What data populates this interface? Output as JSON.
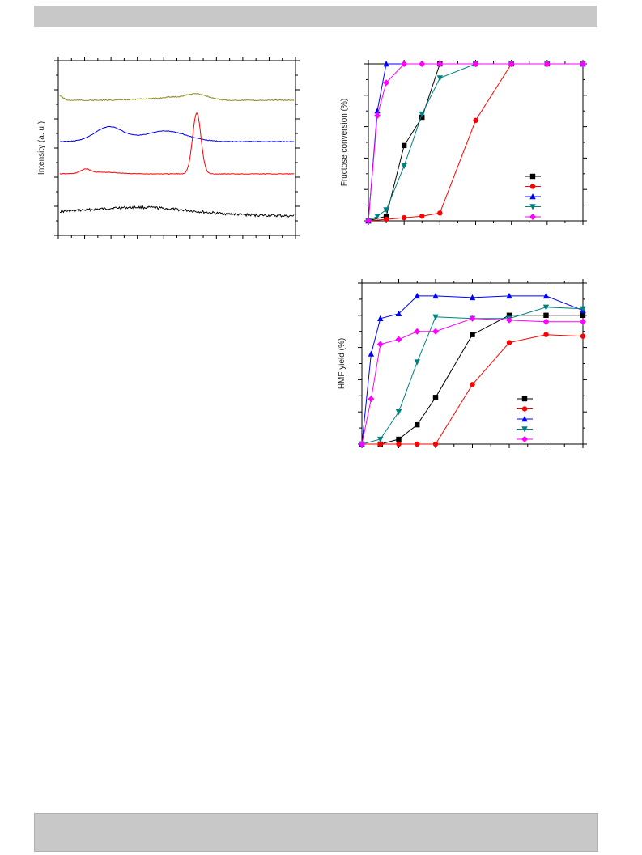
{
  "page": {
    "header_bar": "",
    "footer_bar": ""
  },
  "chart_data": [
    {
      "type": "line",
      "title": "",
      "xlabel": "",
      "ylabel": "Intensity (a. u.)",
      "series": [
        {
          "color": "#8b8b1a",
          "offset": 3
        },
        {
          "color": "#0000ff",
          "offset": 2
        },
        {
          "color": "#ff0000",
          "offset": 1
        },
        {
          "color": "#000000",
          "offset": 0
        }
      ],
      "grid": false
    },
    {
      "type": "line",
      "title": "",
      "xlabel": "",
      "ylabel": "Fructose conversion (%)",
      "ylim": [
        0,
        100
      ],
      "x": [
        0,
        0.5,
        1,
        1.5,
        2,
        3,
        4,
        5,
        6
      ],
      "series": [
        {
          "color": "#000000",
          "marker": "square",
          "x": [
            0,
            0.5,
            1,
            1.5,
            2,
            3,
            4,
            5,
            6
          ],
          "values": [
            0,
            3,
            48,
            66,
            100,
            100,
            100,
            100,
            100
          ]
        },
        {
          "color": "#ff0000",
          "marker": "circle",
          "x": [
            0,
            0.5,
            1,
            1.5,
            2,
            3,
            4,
            5,
            6
          ],
          "values": [
            0,
            1,
            2,
            3,
            5,
            64,
            100,
            100,
            100
          ]
        },
        {
          "color": "#0000ff",
          "marker": "triangle-up",
          "x": [
            0,
            0.25,
            0.5,
            6
          ],
          "values": [
            0,
            70,
            100,
            100
          ]
        },
        {
          "color": "#008080",
          "marker": "triangle-down",
          "x": [
            0,
            0.25,
            0.5,
            1,
            1.5,
            2,
            3,
            4,
            5,
            6
          ],
          "values": [
            0,
            3,
            7,
            35,
            68,
            91,
            100,
            100,
            100,
            100
          ]
        },
        {
          "color": "#ff00ff",
          "marker": "diamond",
          "x": [
            0,
            0.25,
            0.5,
            1,
            1.5,
            2,
            3,
            4,
            5,
            6
          ],
          "values": [
            0,
            67,
            88,
            100,
            100,
            100,
            100,
            100,
            100,
            100
          ]
        }
      ],
      "legend_location": "lower-right",
      "grid": false
    },
    {
      "type": "line",
      "title": "",
      "xlabel": "",
      "ylabel": "HMF yield (%)",
      "ylim": [
        0,
        100
      ],
      "series": [
        {
          "color": "#000000",
          "marker": "square",
          "x": [
            0,
            0.5,
            1,
            1.5,
            2,
            3,
            4,
            5,
            6
          ],
          "values": [
            0,
            0,
            3,
            12,
            29,
            68,
            80,
            80,
            80
          ]
        },
        {
          "color": "#ff0000",
          "marker": "circle",
          "x": [
            0,
            0.5,
            1,
            1.5,
            2,
            3,
            4,
            5,
            6
          ],
          "values": [
            0,
            0,
            0,
            0,
            0,
            37,
            63,
            68,
            67
          ]
        },
        {
          "color": "#0000ff",
          "marker": "triangle-up",
          "x": [
            0,
            0.25,
            0.5,
            1,
            1.5,
            2,
            3,
            4,
            5,
            6
          ],
          "values": [
            0,
            56,
            78,
            81,
            92,
            92,
            91,
            92,
            92,
            83
          ]
        },
        {
          "color": "#008080",
          "marker": "triangle-down",
          "x": [
            0,
            0.5,
            1,
            1.5,
            2,
            3,
            4,
            5,
            6
          ],
          "values": [
            0,
            3,
            20,
            51,
            79,
            78,
            78,
            85,
            84
          ]
        },
        {
          "color": "#ff00ff",
          "marker": "diamond",
          "x": [
            0,
            0.25,
            0.5,
            1,
            1.5,
            2,
            3,
            4,
            5,
            6
          ],
          "values": [
            0,
            28,
            62,
            65,
            70,
            70,
            78,
            77,
            76,
            76
          ]
        }
      ],
      "legend_location": "lower-right",
      "grid": false
    }
  ]
}
